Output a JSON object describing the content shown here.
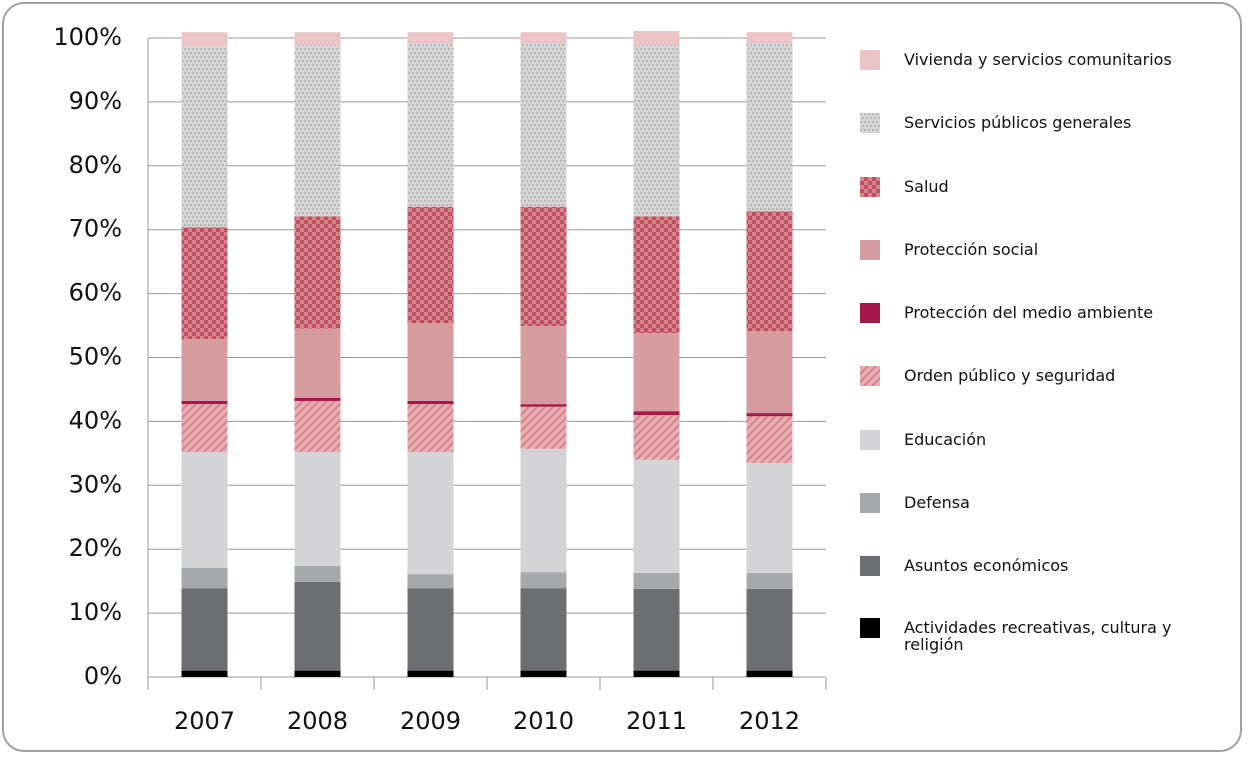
{
  "chart_data": {
    "type": "stacked-bar",
    "categories": [
      "2007",
      "2008",
      "2009",
      "2010",
      "2011",
      "2012"
    ],
    "ylim": [
      0,
      100
    ],
    "yticks": [
      {
        "value": 0,
        "label": "0%"
      },
      {
        "value": 10,
        "label": "10%"
      },
      {
        "value": 20,
        "label": "20%"
      },
      {
        "value": 30,
        "label": "30%"
      },
      {
        "value": 40,
        "label": "40%"
      },
      {
        "value": 50,
        "label": "50%"
      },
      {
        "value": 60,
        "label": "60%"
      },
      {
        "value": 70,
        "label": "70%"
      },
      {
        "value": 80,
        "label": "80%"
      },
      {
        "value": 90,
        "label": "90%"
      },
      {
        "value": 100,
        "label": "100%"
      }
    ],
    "grid": true,
    "legend": "right",
    "series": [
      {
        "name": "Actividades recreativas, cultura y religión",
        "color": "#000000",
        "values": [
          1.0,
          1.0,
          1.0,
          1.0,
          1.0,
          1.0
        ]
      },
      {
        "name": "Asuntos económicos",
        "color": "#6d6e71",
        "values": [
          12.9,
          13.9,
          12.9,
          12.9,
          12.8,
          12.8
        ]
      },
      {
        "name": "Defensa",
        "color": "#a7a8ab",
        "values": [
          3.2,
          2.5,
          2.2,
          2.5,
          2.5,
          2.5
        ]
      },
      {
        "name": "Educación",
        "color": "#d4d4d6",
        "values": [
          18.1,
          17.8,
          19.1,
          19.3,
          17.7,
          17.2
        ]
      },
      {
        "name": "Orden público y seguridad",
        "color": "#d6868d",
        "pattern": "hatch",
        "values": [
          7.5,
          8.0,
          7.5,
          6.6,
          7.0,
          7.3
        ]
      },
      {
        "name": "Protección del medio ambiente",
        "color": "#a8174a",
        "values": [
          0.5,
          0.5,
          0.5,
          0.4,
          0.6,
          0.5
        ]
      },
      {
        "name": "Protección social",
        "color": "#d79ca0",
        "values": [
          9.7,
          10.8,
          12.2,
          12.2,
          12.2,
          12.8
        ]
      },
      {
        "name": "Salud",
        "color": "#c0505e",
        "pattern": "checker",
        "values": [
          17.5,
          17.6,
          18.2,
          18.7,
          18.3,
          18.8
        ]
      },
      {
        "name": "Servicios públicos generales",
        "color": "#b4b4b6",
        "pattern": "dots",
        "values": [
          28.3,
          26.8,
          25.6,
          25.6,
          26.8,
          26.3
        ]
      },
      {
        "name": "Vivienda y servicios comunitarios",
        "color": "#ebc5c6",
        "values": [
          2.2,
          2.0,
          1.7,
          1.7,
          2.2,
          1.7
        ]
      }
    ]
  }
}
